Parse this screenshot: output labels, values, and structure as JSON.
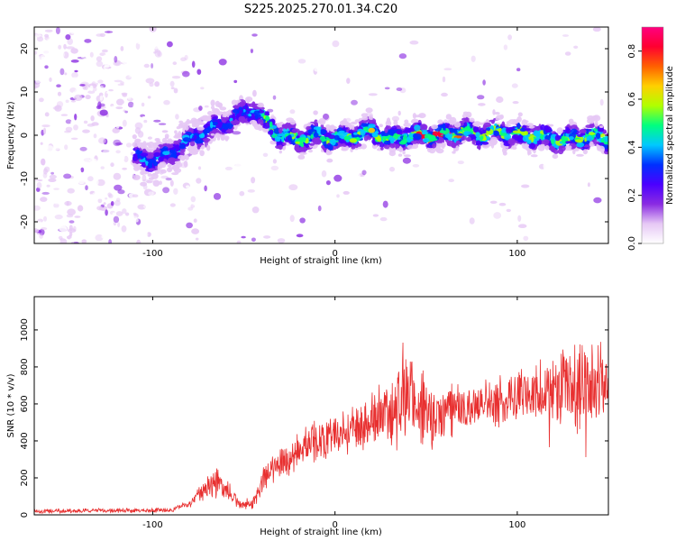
{
  "title": "S225.2025.270.01.34.C20",
  "chart_data": [
    {
      "type": "heatmap",
      "name": "spectrogram",
      "xlabel": "Height of straight line (km)",
      "ylabel": "Frequency (Hz)",
      "xlim": [
        -165,
        150
      ],
      "ylim": [
        -25,
        25
      ],
      "xticks": [
        -100,
        0,
        100
      ],
      "yticks": [
        -20,
        -10,
        0,
        10,
        20
      ],
      "colorbar": {
        "label": "Normalized spectral amplitude",
        "range": [
          0,
          0.9
        ],
        "ticks": [
          0.0,
          0.2,
          0.4,
          0.6,
          0.8
        ],
        "tick_labels": [
          "0.0",
          "0.2",
          "0.4",
          "0.6",
          "0.8"
        ],
        "colors": [
          "#ffffff",
          "#e6c8f5",
          "#8a2be2",
          "#4b00ff",
          "#0030ff",
          "#00c8ff",
          "#00ff80",
          "#b0ff00",
          "#ffd000",
          "#ff6000",
          "#ff0030",
          "#ff0080"
        ]
      },
      "ridge": {
        "x": [
          -165,
          -100,
          -90,
          -80,
          -70,
          -60,
          -50,
          -45,
          -40,
          -35,
          -30,
          -20,
          -10,
          0,
          10,
          20,
          30,
          40,
          50,
          60,
          70,
          80,
          90,
          100,
          110,
          120,
          130,
          140,
          150
        ],
        "y": [
          0,
          -6,
          -4,
          -1,
          1,
          3,
          5,
          6,
          4,
          2,
          0,
          -1,
          0,
          -1,
          0,
          1,
          -1,
          0,
          0,
          0,
          1,
          0,
          1,
          0,
          0,
          -1,
          -1,
          0,
          -1
        ]
      }
    },
    {
      "type": "line",
      "name": "snr",
      "xlabel": "Height of straight line (km)",
      "ylabel": "SNR (10 * v/v)",
      "xlim": [
        -165,
        150
      ],
      "ylim": [
        0,
        1180
      ],
      "xticks": [
        -100,
        0,
        100
      ],
      "yticks": [
        0,
        200,
        400,
        600,
        800,
        1000
      ],
      "color": "#e83030",
      "envelope": {
        "x": [
          -165,
          -90,
          -80,
          -72,
          -65,
          -58,
          -52,
          -45,
          -38,
          -30,
          -20,
          -10,
          0,
          10,
          20,
          30,
          35,
          40,
          45,
          50,
          55,
          60,
          70,
          80,
          90,
          100,
          110,
          120,
          130,
          140,
          150
        ],
        "center": [
          20,
          25,
          60,
          120,
          180,
          120,
          50,
          60,
          220,
          280,
          330,
          400,
          440,
          470,
          500,
          560,
          600,
          640,
          590,
          560,
          540,
          570,
          580,
          590,
          600,
          640,
          660,
          690,
          720,
          700,
          720
        ],
        "amplitude": [
          12,
          12,
          20,
          60,
          90,
          60,
          20,
          30,
          80,
          90,
          100,
          110,
          120,
          130,
          150,
          180,
          260,
          320,
          260,
          200,
          170,
          150,
          130,
          130,
          130,
          140,
          160,
          200,
          260,
          240,
          200
        ]
      }
    }
  ]
}
